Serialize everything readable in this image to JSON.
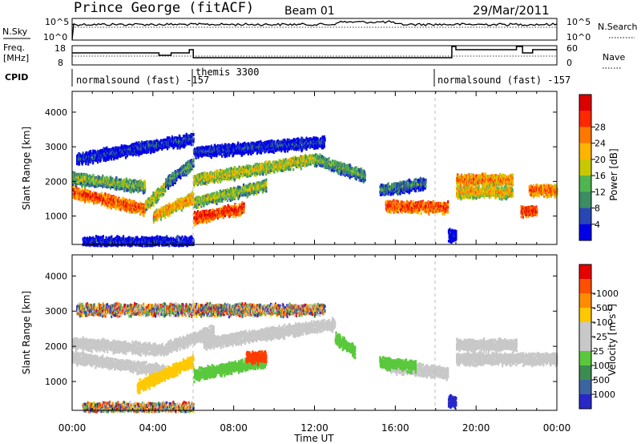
{
  "header": {
    "station": "Prince George (fitACF)",
    "beam": "Beam 01",
    "date": "29/Mar/2011"
  },
  "panels": {
    "nsky_label": "N.Sky",
    "nsky_ticks": [
      "10^5",
      "10^0"
    ],
    "nsearch_label": "N.Search",
    "nsearch_ticks": [
      "10^5",
      "10^0"
    ],
    "freq_label_1": "Freq.",
    "freq_label_2": "[MHz]",
    "freq_ticks": [
      "18",
      "8"
    ],
    "nave_label": "Nave",
    "nave_ticks": [
      "60",
      "0"
    ],
    "cpid_label": "CPID",
    "cpid_segments": [
      {
        "label": "normalsound (fast) -157",
        "start_h": 0,
        "end_h": 6
      },
      {
        "label": "themis 3300",
        "start_h": 6,
        "end_h": 18
      },
      {
        "label": "normalsound (fast) -157",
        "start_h": 18,
        "end_h": 24
      }
    ]
  },
  "chart_data": [
    {
      "type": "heatmap",
      "quantity": "power",
      "ylabel": "Slant Range [km]",
      "xlabel": "Time UT",
      "x_ticks": [
        "00:00",
        "04:00",
        "08:00",
        "12:00",
        "16:00",
        "20:00",
        "00:00"
      ],
      "xlim_hours": [
        0,
        24
      ],
      "y_ticks": [
        1000,
        2000,
        3000,
        4000
      ],
      "ylim": [
        180,
        4600
      ],
      "colorbar": {
        "label": "Power [dB]",
        "ticks": [
          "4",
          "8",
          "12",
          "16",
          "20",
          "24",
          "28"
        ],
        "colors": [
          "#0000e6",
          "#2846b4",
          "#3c8c64",
          "#50b450",
          "#c8c800",
          "#ffb400",
          "#ff7800",
          "#ff2800",
          "#dc0000"
        ]
      },
      "echo_bands": [
        {
          "t0": 0.0,
          "t1": 3.6,
          "r0": 1750,
          "r1": 1250,
          "level": 0.85
        },
        {
          "t0": 0.0,
          "t1": 3.6,
          "r0": 2150,
          "r1": 1900,
          "level": 0.45
        },
        {
          "t0": 3.6,
          "t1": 4.6,
          "r0": 1350,
          "r1": 1900,
          "level": 0.55
        },
        {
          "t0": 4.6,
          "t1": 6.0,
          "r0": 2000,
          "r1": 2600,
          "level": 0.35
        },
        {
          "t0": 4.0,
          "t1": 6.0,
          "r0": 1050,
          "r1": 1600,
          "level": 0.7
        },
        {
          "t0": 6.0,
          "t1": 8.5,
          "r0": 1000,
          "r1": 1300,
          "level": 0.9
        },
        {
          "t0": 6.0,
          "t1": 9.6,
          "r0": 1450,
          "r1": 1950,
          "level": 0.5
        },
        {
          "t0": 6.0,
          "t1": 12.0,
          "r0": 2100,
          "r1": 2700,
          "level": 0.55
        },
        {
          "t0": 12.0,
          "t1": 14.5,
          "r0": 2700,
          "r1": 2200,
          "level": 0.4
        },
        {
          "t0": 0.2,
          "t1": 6.0,
          "r0": 2700,
          "r1": 3300,
          "level": 0.15
        },
        {
          "t0": 6.0,
          "t1": 12.5,
          "r0": 2900,
          "r1": 3200,
          "level": 0.15
        },
        {
          "t0": 15.5,
          "t1": 18.6,
          "r0": 1350,
          "r1": 1300,
          "level": 0.85
        },
        {
          "t0": 15.2,
          "t1": 17.5,
          "r0": 1800,
          "r1": 2000,
          "level": 0.3
        },
        {
          "t0": 19.0,
          "t1": 21.8,
          "r0": 2100,
          "r1": 2100,
          "level": 0.75
        },
        {
          "t0": 19.0,
          "t1": 21.8,
          "r0": 1750,
          "r1": 1750,
          "level": 0.65
        },
        {
          "t0": 22.2,
          "t1": 23.0,
          "r0": 1200,
          "r1": 1200,
          "level": 0.9
        },
        {
          "t0": 22.6,
          "t1": 24.0,
          "r0": 1800,
          "r1": 1800,
          "level": 0.8
        },
        {
          "t0": 0.5,
          "t1": 6.0,
          "r0": 300,
          "r1": 300,
          "level": 0.1
        },
        {
          "t0": 18.6,
          "t1": 19.0,
          "r0": 500,
          "r1": 500,
          "level": 0.05
        }
      ]
    },
    {
      "type": "heatmap",
      "quantity": "velocity",
      "ylabel": "Slant Range [km]",
      "xlabel": "Time UT",
      "x_ticks": [
        "00:00",
        "04:00",
        "08:00",
        "12:00",
        "16:00",
        "20:00",
        "00:00"
      ],
      "xlim_hours": [
        0,
        24
      ],
      "y_ticks": [
        1000,
        2000,
        3000,
        4000
      ],
      "ylim": [
        180,
        4600
      ],
      "colorbar": {
        "label": "Velocity [m s",
        "label_sup": "-1",
        "label_end": "]",
        "ticks": [
          "1000",
          "500",
          "100",
          "25",
          "-25",
          "-100",
          "-500",
          "-1000"
        ],
        "colors": [
          "#2828c8",
          "#3c64a0",
          "#3c8c50",
          "#5ac83c",
          "#c8c8c8",
          "#c8c8c8",
          "#ffc800",
          "#ff8c00",
          "#ff5000",
          "#e60000"
        ]
      },
      "echo_bands": [
        {
          "t0": 0.0,
          "t1": 4.6,
          "r0": 1750,
          "r1": 1350,
          "v": "gray"
        },
        {
          "t0": 0.0,
          "t1": 4.6,
          "r0": 2150,
          "r1": 1950,
          "v": "gray"
        },
        {
          "t0": 3.2,
          "t1": 6.0,
          "r0": 900,
          "r1": 1650,
          "v": "yellow"
        },
        {
          "t0": 4.6,
          "t1": 7.0,
          "r0": 2000,
          "r1": 2500,
          "v": "gray"
        },
        {
          "t0": 6.0,
          "t1": 9.6,
          "r0": 1250,
          "r1": 1650,
          "v": "green"
        },
        {
          "t0": 8.6,
          "t1": 9.6,
          "r0": 1750,
          "r1": 1750,
          "v": "red"
        },
        {
          "t0": 6.5,
          "t1": 13.0,
          "r0": 2150,
          "r1": 2700,
          "v": "gray"
        },
        {
          "t0": 13.0,
          "t1": 14.0,
          "r0": 2300,
          "r1": 1900,
          "v": "green"
        },
        {
          "t0": 15.5,
          "t1": 18.6,
          "r0": 1500,
          "r1": 1300,
          "v": "gray"
        },
        {
          "t0": 15.2,
          "t1": 17.0,
          "r0": 1600,
          "r1": 1500,
          "v": "green"
        },
        {
          "t0": 19.0,
          "t1": 22.0,
          "r0": 2100,
          "r1": 2100,
          "v": "gray"
        },
        {
          "t0": 19.0,
          "t1": 22.0,
          "r0": 1700,
          "r1": 1700,
          "v": "gray"
        },
        {
          "t0": 22.0,
          "t1": 24.0,
          "r0": 1700,
          "r1": 1700,
          "v": "gray"
        },
        {
          "t0": 18.6,
          "t1": 19.0,
          "r0": 500,
          "r1": 500,
          "v": "blue"
        },
        {
          "t0": 0.5,
          "t1": 6.0,
          "r0": 300,
          "r1": 300,
          "v": "mixed"
        },
        {
          "t0": 0.2,
          "t1": 12.5,
          "r0": 3100,
          "r1": 3100,
          "v": "mixed"
        }
      ]
    }
  ]
}
